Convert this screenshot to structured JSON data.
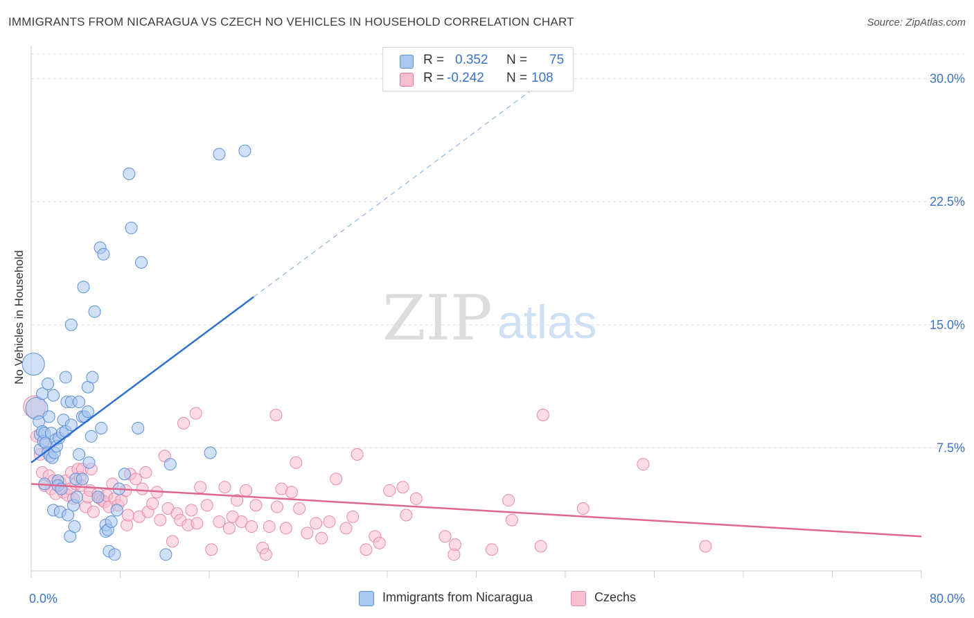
{
  "title": "IMMIGRANTS FROM NICARAGUA VS CZECH NO VEHICLES IN HOUSEHOLD CORRELATION CHART",
  "source": "Source: ZipAtlas.com",
  "watermark": {
    "zip": "ZIP",
    "atlas": "atlas"
  },
  "legend_top": {
    "rows": [
      {
        "r_label": "R =",
        "r_value": "0.352",
        "n_label": "N =",
        "n_value": "75",
        "color": "#a9c7ef",
        "border": "#5d8fd6"
      },
      {
        "r_label": "R =",
        "r_value": "-0.242",
        "n_label": "N =",
        "n_value": "108",
        "color": "#f7bfd0",
        "border": "#e07aa0"
      }
    ]
  },
  "colors": {
    "blue_fill": "#a9c7ef",
    "blue_stroke": "#5d8fd6",
    "blue_line": "#2f6fd0",
    "pink_fill": "#f7bfd0",
    "pink_stroke": "#e68aab",
    "pink_line": "#e0668f",
    "grid": "#dddddd",
    "tick_text": "#3b73c6"
  },
  "chart_data": {
    "type": "scatter",
    "title": "IMMIGRANTS FROM NICARAGUA VS CZECH NO VEHICLES IN HOUSEHOLD CORRELATION CHART",
    "xlabel": "",
    "ylabel": "No Vehicles in Household",
    "xlim": [
      0,
      80
    ],
    "ylim": [
      0,
      31.5
    ],
    "x_tick_labels": [
      "0.0%",
      "80.0%"
    ],
    "y_ticks": [
      7.5,
      15.0,
      22.5,
      30.0
    ],
    "y_tick_labels": [
      "7.5%",
      "15.0%",
      "22.5%",
      "30.0%"
    ],
    "grid": "horizontal dashed",
    "legend_position": "bottom",
    "series": [
      {
        "name": "Immigrants from Nicaragua",
        "color": "#a9c7ef",
        "trend": {
          "x0": 0.0,
          "y0": 6.6,
          "x1": 20.0,
          "y1": 16.7,
          "dashed_to_x": 45.0
        },
        "points": [
          [
            0.2,
            12.6
          ],
          [
            0.5,
            9.9
          ],
          [
            0.7,
            9.1
          ],
          [
            0.8,
            8.3
          ],
          [
            0.8,
            7.4
          ],
          [
            1.0,
            10.8
          ],
          [
            1.0,
            8.5
          ],
          [
            1.1,
            7.9
          ],
          [
            1.2,
            8.4
          ],
          [
            1.2,
            5.3
          ],
          [
            1.3,
            7.8
          ],
          [
            1.5,
            11.4
          ],
          [
            1.5,
            7.2
          ],
          [
            1.6,
            9.4
          ],
          [
            1.7,
            7.0
          ],
          [
            1.8,
            8.4
          ],
          [
            1.9,
            6.9
          ],
          [
            2.0,
            10.7
          ],
          [
            2.0,
            3.7
          ],
          [
            2.1,
            7.2
          ],
          [
            2.2,
            8.0
          ],
          [
            2.3,
            7.6
          ],
          [
            2.4,
            5.5
          ],
          [
            2.4,
            5.2
          ],
          [
            2.5,
            8.1
          ],
          [
            2.6,
            3.6
          ],
          [
            2.8,
            8.4
          ],
          [
            2.9,
            9.2
          ],
          [
            3.1,
            11.8
          ],
          [
            3.1,
            8.5
          ],
          [
            3.2,
            10.3
          ],
          [
            3.3,
            3.4
          ],
          [
            3.5,
            2.1
          ],
          [
            3.6,
            10.3
          ],
          [
            3.6,
            8.9
          ],
          [
            3.8,
            4.0
          ],
          [
            3.9,
            2.7
          ],
          [
            4.0,
            5.6
          ],
          [
            4.1,
            4.5
          ],
          [
            4.3,
            7.1
          ],
          [
            4.3,
            10.3
          ],
          [
            4.6,
            9.4
          ],
          [
            4.6,
            5.6
          ],
          [
            4.7,
            17.3
          ],
          [
            4.8,
            9.4
          ],
          [
            5.1,
            11.2
          ],
          [
            5.1,
            9.7
          ],
          [
            5.2,
            6.6
          ],
          [
            5.4,
            8.2
          ],
          [
            5.5,
            11.8
          ],
          [
            5.7,
            15.8
          ],
          [
            6.0,
            4.5
          ],
          [
            6.2,
            19.7
          ],
          [
            6.3,
            8.7
          ],
          [
            6.5,
            19.3
          ],
          [
            6.7,
            2.4
          ],
          [
            6.7,
            2.8
          ],
          [
            6.9,
            2.5
          ],
          [
            7.0,
            1.2
          ],
          [
            7.2,
            3.0
          ],
          [
            7.5,
            1.0
          ],
          [
            7.7,
            3.7
          ],
          [
            7.9,
            5.0
          ],
          [
            8.4,
            5.9
          ],
          [
            8.8,
            24.2
          ],
          [
            9.0,
            20.9
          ],
          [
            9.6,
            8.7
          ],
          [
            9.9,
            18.8
          ],
          [
            12.1,
            1.0
          ],
          [
            12.5,
            6.5
          ],
          [
            16.1,
            7.2
          ],
          [
            16.9,
            25.4
          ],
          [
            19.2,
            25.6
          ],
          [
            3.6,
            15.0
          ],
          [
            2.7,
            5.0
          ]
        ]
      },
      {
        "name": "Czechs",
        "color": "#f7bfd0",
        "trend": {
          "x0": 0.0,
          "y0": 5.3,
          "x1": 80.0,
          "y1": 2.1
        },
        "points": [
          [
            0.3,
            10.0
          ],
          [
            0.5,
            8.2
          ],
          [
            0.8,
            7.1
          ],
          [
            1.0,
            6.0
          ],
          [
            1.2,
            5.2
          ],
          [
            1.4,
            7.7
          ],
          [
            1.6,
            5.8
          ],
          [
            1.8,
            5.0
          ],
          [
            2.0,
            5.5
          ],
          [
            2.2,
            4.7
          ],
          [
            2.4,
            5.2
          ],
          [
            2.6,
            5.4
          ],
          [
            2.9,
            4.8
          ],
          [
            3.1,
            5.5
          ],
          [
            3.3,
            4.6
          ],
          [
            3.5,
            5.0
          ],
          [
            3.6,
            6.0
          ],
          [
            3.8,
            4.4
          ],
          [
            4.0,
            5.3
          ],
          [
            4.2,
            6.2
          ],
          [
            4.4,
            5.7
          ],
          [
            4.5,
            5.2
          ],
          [
            4.6,
            6.2
          ],
          [
            4.9,
            3.9
          ],
          [
            5.1,
            4.5
          ],
          [
            5.3,
            4.9
          ],
          [
            5.4,
            6.2
          ],
          [
            5.6,
            3.6
          ],
          [
            6.0,
            4.7
          ],
          [
            6.2,
            4.4
          ],
          [
            6.4,
            4.3
          ],
          [
            6.6,
            4.2
          ],
          [
            6.8,
            4.6
          ],
          [
            7.0,
            3.9
          ],
          [
            7.3,
            5.3
          ],
          [
            7.5,
            4.4
          ],
          [
            7.8,
            4.0
          ],
          [
            8.1,
            4.3
          ],
          [
            8.5,
            4.9
          ],
          [
            8.6,
            2.8
          ],
          [
            8.7,
            3.4
          ],
          [
            8.9,
            5.9
          ],
          [
            9.4,
            5.6
          ],
          [
            9.7,
            3.3
          ],
          [
            10.0,
            5.0
          ],
          [
            10.3,
            6.0
          ],
          [
            10.5,
            3.6
          ],
          [
            10.9,
            4.1
          ],
          [
            11.3,
            4.8
          ],
          [
            11.6,
            3.1
          ],
          [
            12.0,
            7.0
          ],
          [
            12.3,
            3.8
          ],
          [
            12.7,
            1.8
          ],
          [
            13.1,
            3.5
          ],
          [
            13.4,
            3.1
          ],
          [
            13.7,
            9.0
          ],
          [
            14.1,
            2.8
          ],
          [
            14.4,
            3.7
          ],
          [
            14.9,
            2.9
          ],
          [
            15.2,
            5.1
          ],
          [
            15.8,
            4.0
          ],
          [
            16.2,
            1.3
          ],
          [
            16.9,
            3.0
          ],
          [
            17.4,
            5.1
          ],
          [
            17.8,
            2.6
          ],
          [
            18.1,
            3.3
          ],
          [
            18.5,
            4.3
          ],
          [
            18.9,
            3.0
          ],
          [
            19.3,
            4.9
          ],
          [
            19.8,
            2.7
          ],
          [
            20.2,
            4.0
          ],
          [
            20.8,
            1.4
          ],
          [
            21.1,
            1.0
          ],
          [
            21.4,
            2.7
          ],
          [
            22.1,
            3.9
          ],
          [
            22.5,
            5.0
          ],
          [
            22.9,
            2.6
          ],
          [
            23.4,
            4.8
          ],
          [
            23.8,
            6.6
          ],
          [
            24.1,
            3.8
          ],
          [
            24.8,
            2.3
          ],
          [
            25.6,
            2.9
          ],
          [
            26.1,
            2.0
          ],
          [
            26.8,
            3.0
          ],
          [
            27.4,
            5.6
          ],
          [
            28.3,
            2.6
          ],
          [
            28.9,
            3.3
          ],
          [
            29.3,
            7.1
          ],
          [
            30.1,
            1.3
          ],
          [
            30.9,
            2.1
          ],
          [
            31.3,
            1.7
          ],
          [
            32.2,
            4.9
          ],
          [
            33.4,
            5.1
          ],
          [
            33.7,
            3.4
          ],
          [
            34.6,
            4.4
          ],
          [
            37.2,
            2.1
          ],
          [
            38.0,
            1.0
          ],
          [
            38.1,
            1.6
          ],
          [
            41.4,
            1.3
          ],
          [
            42.9,
            4.3
          ],
          [
            43.2,
            3.1
          ],
          [
            45.8,
            1.5
          ],
          [
            49.6,
            3.8
          ],
          [
            55.0,
            6.5
          ],
          [
            60.6,
            1.5
          ],
          [
            14.8,
            9.6
          ],
          [
            22.0,
            9.5
          ],
          [
            46.0,
            9.5
          ]
        ]
      }
    ]
  },
  "bottom_legend": [
    {
      "label": "Immigrants from Nicaragua",
      "color": "#a9c7ef",
      "border": "#5d8fd6"
    },
    {
      "label": "Czechs",
      "color": "#f7bfd0",
      "border": "#e68aab"
    }
  ]
}
